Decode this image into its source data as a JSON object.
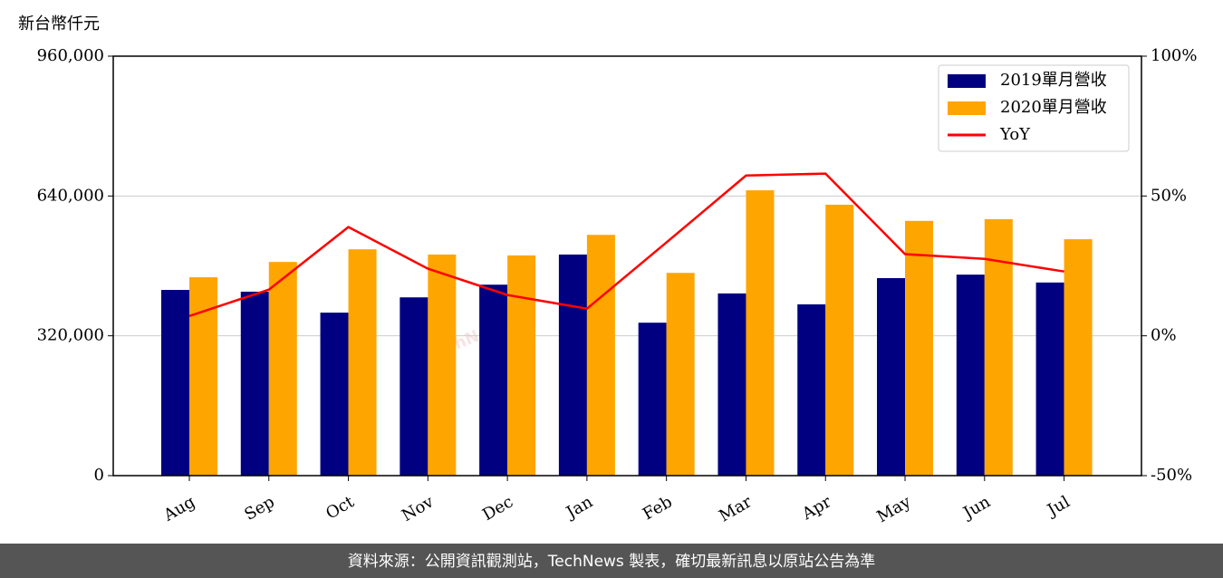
{
  "chart_data": {
    "type": "bar_line",
    "y_label": "新台幣仟元",
    "watermark": "TechNews",
    "footer": "資料來源：公開資訊觀測站，TechNews 製表，確切最新訊息以原站公告為準",
    "categories": [
      "Aug",
      "Sep",
      "Oct",
      "Nov",
      "Dec",
      "Jan",
      "Feb",
      "Mar",
      "Apr",
      "May",
      "Jun",
      "Jul"
    ],
    "series": [
      {
        "name": "2019單月營收",
        "color": "#000080",
        "type": "bar",
        "values": [
          425000,
          421000,
          373000,
          408000,
          437000,
          506000,
          350000,
          417000,
          392000,
          452000,
          460000,
          442000
        ]
      },
      {
        "name": "2020單月營收",
        "color": "#ffa500",
        "type": "bar",
        "values": [
          454000,
          489000,
          518000,
          506000,
          504000,
          551000,
          464000,
          653000,
          620000,
          583000,
          587000,
          541000
        ]
      },
      {
        "name": "YoY",
        "color": "#ff0000",
        "type": "line",
        "axis": "y2",
        "values": [
          7.1,
          16.5,
          38.9,
          24,
          14.6,
          9.7,
          33.4,
          57.3,
          58,
          29.2,
          27.5,
          23
        ]
      }
    ],
    "ylim": [
      0,
      960000
    ],
    "yticks": [
      {
        "value": 0,
        "label": "0"
      },
      {
        "value": 320000,
        "label": "320,000"
      },
      {
        "value": 640000,
        "label": "640,000"
      },
      {
        "value": 960000,
        "label": "960,000"
      }
    ],
    "y2lim": [
      -50,
      100
    ],
    "y2ticks": [
      {
        "value": -50,
        "label": "-50%"
      },
      {
        "value": 0,
        "label": "0%"
      },
      {
        "value": 50,
        "label": "50%"
      },
      {
        "value": 100,
        "label": "100%"
      }
    ],
    "grid": true,
    "legend": "upper right"
  }
}
